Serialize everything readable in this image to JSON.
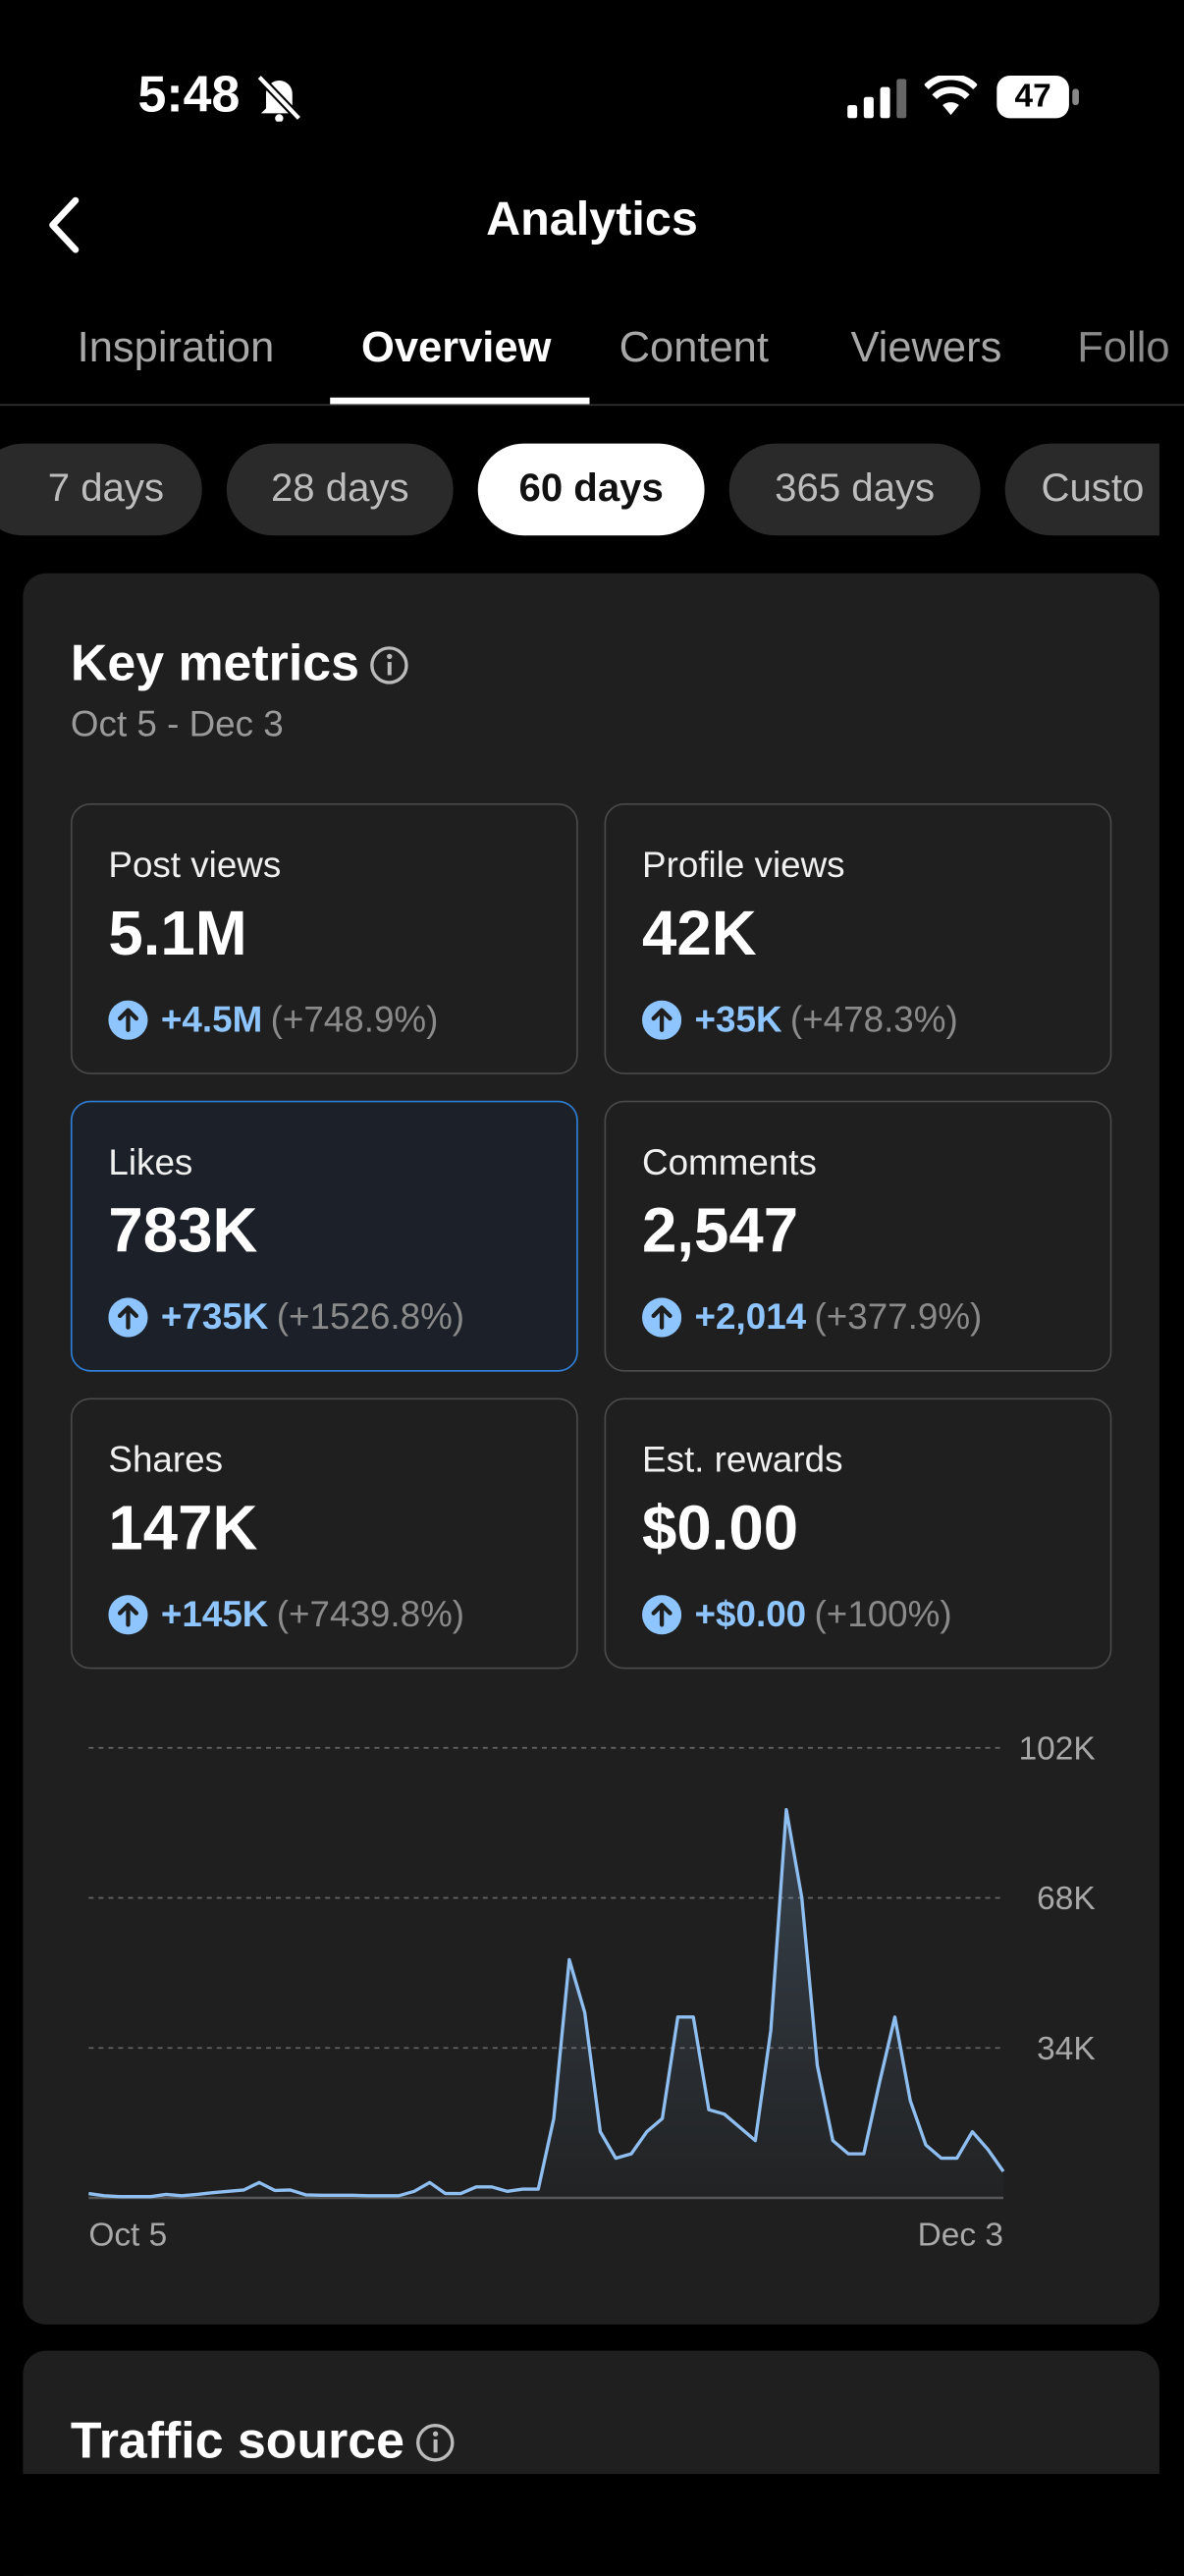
{
  "status_bar": {
    "time": "5:48",
    "battery": "47"
  },
  "header": {
    "title": "Analytics"
  },
  "tabs": [
    "Inspiration",
    "Overview",
    "Content",
    "Viewers",
    "Follo"
  ],
  "periods": [
    "7 days",
    "28 days",
    "60 days",
    "365 days",
    "Custo"
  ],
  "key_metrics": {
    "title": "Key metrics",
    "date_range": "Oct 5 - Dec 3",
    "metrics": [
      {
        "title": "Post views",
        "value": "5.1M",
        "change": "+4.5M",
        "pct": "(+748.9%)"
      },
      {
        "title": "Profile views",
        "value": "42K",
        "change": "+35K",
        "pct": "(+478.3%)"
      },
      {
        "title": "Likes",
        "value": "783K",
        "change": "+735K",
        "pct": "(+1526.8%)"
      },
      {
        "title": "Comments",
        "value": "2,547",
        "change": "+2,014",
        "pct": "(+377.9%)"
      },
      {
        "title": "Shares",
        "value": "147K",
        "change": "+145K",
        "pct": "(+7439.8%)"
      },
      {
        "title": "Est. rewards",
        "value": "$0.00",
        "change": "+$0.00",
        "pct": "(+100%)"
      }
    ]
  },
  "chart_data": {
    "type": "line",
    "color": "#8fbef0",
    "grid": true,
    "categories": [
      "Oct 5",
      null,
      null,
      null,
      null,
      null,
      null,
      null,
      null,
      null,
      null,
      null,
      null,
      null,
      null,
      null,
      null,
      null,
      null,
      null,
      null,
      null,
      null,
      null,
      null,
      null,
      null,
      null,
      null,
      null,
      null,
      null,
      null,
      null,
      null,
      null,
      null,
      null,
      null,
      null,
      null,
      null,
      null,
      null,
      null,
      null,
      null,
      null,
      null,
      null,
      null,
      null,
      null,
      null,
      null,
      null,
      null,
      null,
      null,
      "Dec 3"
    ],
    "values": [
      1000,
      500,
      300,
      300,
      300,
      800,
      500,
      800,
      1200,
      1500,
      1800,
      3500,
      1700,
      1800,
      700,
      600,
      600,
      600,
      500,
      500,
      500,
      1500,
      3500,
      1000,
      1000,
      2500,
      2500,
      1500,
      2000,
      2000,
      18000,
      54000,
      42000,
      15000,
      9000,
      10000,
      15000,
      18000,
      41000,
      41000,
      20000,
      19000,
      16000,
      13000,
      38000,
      88000,
      68000,
      30000,
      13000,
      10000,
      10000,
      26000,
      41000,
      22000,
      12000,
      9000,
      9000,
      15000,
      11000,
      6000
    ],
    "ylim": [
      0,
      102000
    ],
    "yticks": [
      {
        "value": 34000,
        "label": "34K"
      },
      {
        "value": 68000,
        "label": "68K"
      },
      {
        "value": 102000,
        "label": "102K"
      }
    ]
  },
  "traffic_source": {
    "title": "Traffic source"
  }
}
